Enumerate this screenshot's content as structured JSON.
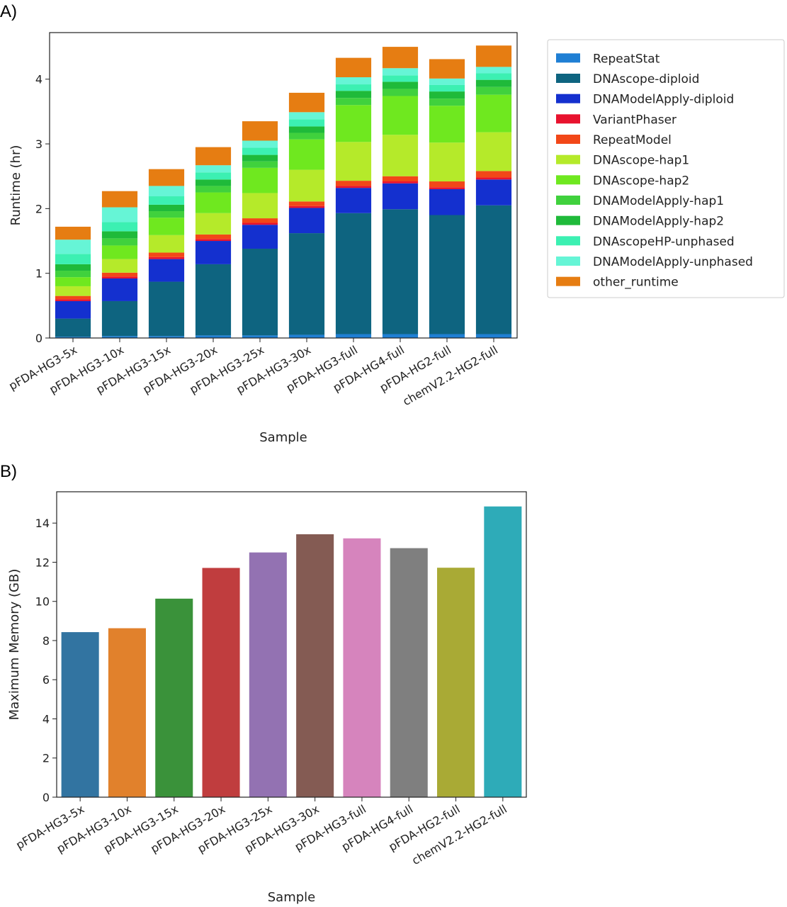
{
  "figure": {
    "panel_a_label": "A)",
    "panel_b_label": "B)"
  },
  "chart_data": [
    {
      "type": "bar",
      "stacked": true,
      "title": "",
      "xlabel": "Sample",
      "ylabel": "Runtime (hr)",
      "ylim": [
        0,
        4.72
      ],
      "yticks": [
        0,
        1,
        2,
        3,
        4
      ],
      "grid": false,
      "legend_position": "outside-right",
      "categories": [
        "pFDA-HG3-5x",
        "pFDA-HG3-10x",
        "pFDA-HG3-15x",
        "pFDA-HG3-20x",
        "pFDA-HG3-25x",
        "pFDA-HG3-30x",
        "pFDA-HG3-full",
        "pFDA-HG4-full",
        "pFDA-HG2-full",
        "chemV2.2-HG2-full"
      ],
      "series": [
        {
          "name": "RepeatStat",
          "color": "#1f7fd4",
          "values": [
            0.02,
            0.03,
            0.03,
            0.04,
            0.04,
            0.05,
            0.06,
            0.06,
            0.06,
            0.06
          ]
        },
        {
          "name": "DNAscope-diploid",
          "color": "#0e6480",
          "values": [
            0.28,
            0.54,
            0.84,
            1.1,
            1.34,
            1.57,
            1.87,
            1.93,
            1.84,
            1.99
          ]
        },
        {
          "name": "DNAModelApply-diploid",
          "color": "#1430cf",
          "values": [
            0.27,
            0.35,
            0.35,
            0.36,
            0.37,
            0.39,
            0.39,
            0.4,
            0.4,
            0.4
          ]
        },
        {
          "name": "VariantPhaser",
          "color": "#e8122e",
          "values": [
            0.03,
            0.03,
            0.03,
            0.03,
            0.03,
            0.03,
            0.03,
            0.03,
            0.03,
            0.03
          ]
        },
        {
          "name": "RepeatModel",
          "color": "#f24718",
          "values": [
            0.05,
            0.06,
            0.07,
            0.07,
            0.07,
            0.07,
            0.08,
            0.08,
            0.09,
            0.1
          ]
        },
        {
          "name": "DNAscope-hap1",
          "color": "#b5ea2a",
          "values": [
            0.15,
            0.21,
            0.27,
            0.33,
            0.39,
            0.49,
            0.6,
            0.64,
            0.6,
            0.6
          ]
        },
        {
          "name": "DNAscope-hap2",
          "color": "#6fe81f",
          "values": [
            0.14,
            0.21,
            0.27,
            0.32,
            0.39,
            0.47,
            0.57,
            0.6,
            0.57,
            0.58
          ]
        },
        {
          "name": "DNAModelApply-hap1",
          "color": "#40d13d",
          "values": [
            0.1,
            0.11,
            0.1,
            0.1,
            0.1,
            0.1,
            0.11,
            0.11,
            0.11,
            0.12
          ]
        },
        {
          "name": "DNAModelApply-hap2",
          "color": "#1fba3a",
          "values": [
            0.1,
            0.11,
            0.1,
            0.1,
            0.1,
            0.1,
            0.11,
            0.11,
            0.11,
            0.11
          ]
        },
        {
          "name": "DNAscopeHP-unphased",
          "color": "#3cf0b2",
          "values": [
            0.16,
            0.14,
            0.13,
            0.11,
            0.11,
            0.11,
            0.1,
            0.1,
            0.1,
            0.1
          ]
        },
        {
          "name": "DNAModelApply-unphased",
          "color": "#66f5d6",
          "values": [
            0.22,
            0.23,
            0.16,
            0.11,
            0.11,
            0.11,
            0.11,
            0.11,
            0.1,
            0.1
          ]
        },
        {
          "name": "other_runtime",
          "color": "#e67d12",
          "values": [
            0.2,
            0.25,
            0.26,
            0.28,
            0.3,
            0.3,
            0.3,
            0.33,
            0.3,
            0.33
          ]
        }
      ]
    },
    {
      "type": "bar",
      "title": "",
      "xlabel": "Sample",
      "ylabel": "Maximum Memory (GB)",
      "ylim": [
        0,
        15.6
      ],
      "yticks": [
        0,
        2,
        4,
        6,
        8,
        10,
        12,
        14
      ],
      "grid": false,
      "categories": [
        "pFDA-HG3-5x",
        "pFDA-HG3-10x",
        "pFDA-HG3-15x",
        "pFDA-HG3-20x",
        "pFDA-HG3-25x",
        "pFDA-HG3-30x",
        "pFDA-HG3-full",
        "pFDA-HG4-full",
        "pFDA-HG2-full",
        "chemV2.2-HG2-full"
      ],
      "values": [
        8.43,
        8.63,
        10.14,
        11.71,
        12.5,
        13.43,
        13.22,
        12.72,
        11.72,
        14.85
      ],
      "colors": [
        "#3274a1",
        "#e1812c",
        "#3a923a",
        "#c03d3e",
        "#9372b2",
        "#845b53",
        "#d684bd",
        "#7f7f7f",
        "#a9aa35",
        "#2eabb8"
      ]
    }
  ]
}
